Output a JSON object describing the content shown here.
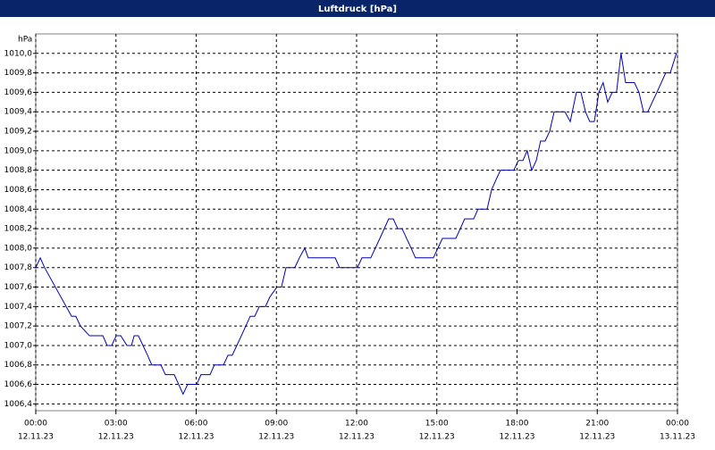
{
  "chart_data": {
    "type": "line",
    "title": "Luftdruck [hPa]",
    "ylabel": "hPa",
    "xlim": [
      0,
      24
    ],
    "xticks": [
      {
        "value": 0,
        "label": "00:00",
        "date": "12.11.23"
      },
      {
        "value": 3,
        "label": "03:00",
        "date": "12.11.23"
      },
      {
        "value": 6,
        "label": "06:00",
        "date": "12.11.23"
      },
      {
        "value": 9,
        "label": "09:00",
        "date": "12.11.23"
      },
      {
        "value": 12,
        "label": "12:00",
        "date": "12.11.23"
      },
      {
        "value": 15,
        "label": "15:00",
        "date": "12.11.23"
      },
      {
        "value": 18,
        "label": "18:00",
        "date": "12.11.23"
      },
      {
        "value": 21,
        "label": "21:00",
        "date": "12.11.23"
      },
      {
        "value": 24,
        "label": "00:00",
        "date": "13.11.23"
      }
    ],
    "ylim": [
      1006.33,
      1010.2
    ],
    "yticks": [
      {
        "value": 1006.4,
        "label": "1006,4"
      },
      {
        "value": 1006.6,
        "label": "1006,6"
      },
      {
        "value": 1006.8,
        "label": "1006,8"
      },
      {
        "value": 1007.0,
        "label": "1007,0"
      },
      {
        "value": 1007.2,
        "label": "1007,2"
      },
      {
        "value": 1007.4,
        "label": "1007,4"
      },
      {
        "value": 1007.6,
        "label": "1007,6"
      },
      {
        "value": 1007.8,
        "label": "1007,8"
      },
      {
        "value": 1008.0,
        "label": "1008,0"
      },
      {
        "value": 1008.2,
        "label": "1008,2"
      },
      {
        "value": 1008.4,
        "label": "1008,4"
      },
      {
        "value": 1008.6,
        "label": "1008,6"
      },
      {
        "value": 1008.8,
        "label": "1008,8"
      },
      {
        "value": 1009.0,
        "label": "1009,0"
      },
      {
        "value": 1009.2,
        "label": "1009,2"
      },
      {
        "value": 1009.4,
        "label": "1009,4"
      },
      {
        "value": 1009.6,
        "label": "1009,6"
      },
      {
        "value": 1009.8,
        "label": "1009,8"
      },
      {
        "value": 1010.0,
        "label": "1010,0"
      }
    ],
    "grid": true,
    "x": [
      0,
      0.17,
      0.33,
      1.34,
      1.5,
      1.67,
      2.01,
      2.51,
      2.67,
      2.84,
      3.01,
      3.18,
      3.41,
      3.58,
      3.68,
      3.84,
      4.18,
      4.34,
      4.68,
      4.85,
      5.18,
      5.51,
      5.68,
      6.02,
      6.18,
      6.52,
      6.68,
      7.02,
      7.19,
      7.35,
      7.69,
      8.02,
      8.19,
      8.36,
      8.59,
      8.76,
      9.02,
      9.19,
      9.36,
      9.69,
      9.86,
      10.06,
      10.19,
      11.2,
      11.36,
      12.03,
      12.2,
      12.53,
      12.87,
      13.2,
      13.37,
      13.54,
      13.7,
      14.04,
      14.2,
      14.87,
      15.04,
      15.21,
      15.71,
      15.88,
      16.04,
      16.38,
      16.54,
      16.88,
      17.05,
      17.21,
      17.38,
      17.88,
      18.05,
      18.22,
      18.38,
      18.55,
      18.72,
      18.88,
      19.05,
      19.22,
      19.39,
      19.79,
      19.99,
      20.22,
      20.39,
      20.56,
      20.72,
      20.89,
      21.06,
      21.22,
      21.39,
      21.56,
      21.72,
      21.89,
      22.06,
      22.39,
      22.56,
      22.73,
      22.89,
      23.23,
      23.56,
      23.73,
      23.96
    ],
    "series": [
      {
        "color": "#0000b0",
        "values": [
          1007.8,
          1007.9,
          1007.8,
          1007.3,
          1007.3,
          1007.2,
          1007.1,
          1007.1,
          1007.0,
          1007.0,
          1007.1,
          1007.1,
          1007.0,
          1007.0,
          1007.1,
          1007.1,
          1006.9,
          1006.8,
          1006.8,
          1006.7,
          1006.7,
          1006.5,
          1006.6,
          1006.6,
          1006.7,
          1006.7,
          1006.8,
          1006.8,
          1006.9,
          1006.9,
          1007.1,
          1007.3,
          1007.3,
          1007.4,
          1007.4,
          1007.5,
          1007.6,
          1007.6,
          1007.8,
          1007.8,
          1007.9,
          1008.0,
          1007.9,
          1007.9,
          1007.8,
          1007.8,
          1007.9,
          1007.9,
          1008.1,
          1008.3,
          1008.3,
          1008.2,
          1008.2,
          1008.0,
          1007.9,
          1007.9,
          1008.0,
          1008.1,
          1008.1,
          1008.2,
          1008.3,
          1008.3,
          1008.4,
          1008.4,
          1008.6,
          1008.7,
          1008.8,
          1008.8,
          1008.9,
          1008.9,
          1009.0,
          1008.8,
          1008.9,
          1009.1,
          1009.1,
          1009.2,
          1009.4,
          1009.4,
          1009.3,
          1009.6,
          1009.6,
          1009.4,
          1009.3,
          1009.3,
          1009.6,
          1009.7,
          1009.5,
          1009.6,
          1009.6,
          1010.0,
          1009.7,
          1009.7,
          1009.6,
          1009.4,
          1009.4,
          1009.6,
          1009.8,
          1009.8,
          1010.0
        ]
      }
    ]
  }
}
